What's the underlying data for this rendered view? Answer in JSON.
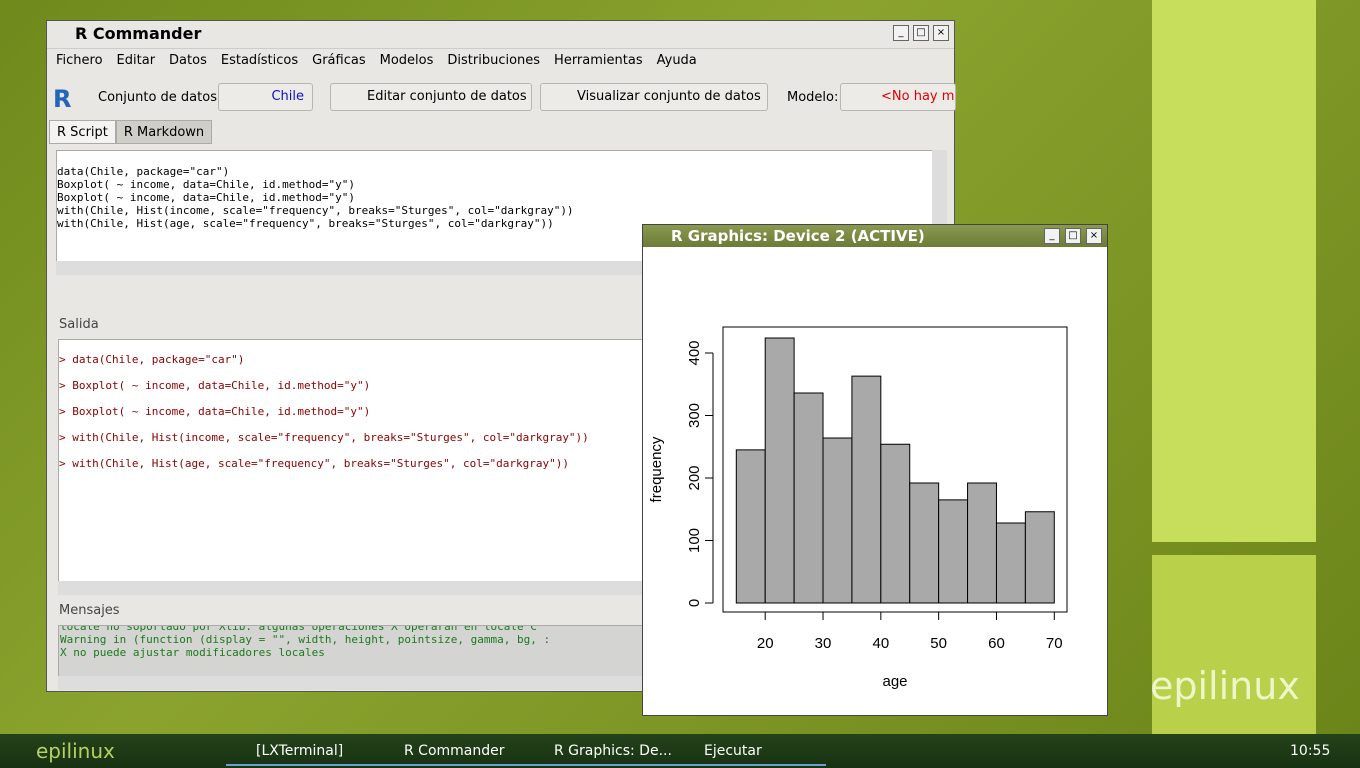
{
  "rcommander": {
    "title": "R Commander",
    "menu": [
      "Fichero",
      "Editar",
      "Datos",
      "Estadísticos",
      "Gráficas",
      "Modelos",
      "Distribuciones",
      "Herramientas",
      "Ayuda"
    ],
    "toolbar": {
      "dataset_label": "Conjunto de datos:",
      "dataset": "Chile",
      "edit_button": "Editar conjunto de datos",
      "view_button": "Visualizar conjunto de datos",
      "model_label": "Modelo:",
      "model": "<No hay mo"
    },
    "tabs": [
      "R Script",
      "R Markdown"
    ],
    "script": [
      "data(Chile, package=\"car\")",
      "Boxplot( ~ income, data=Chile, id.method=\"y\")",
      "Boxplot( ~ income, data=Chile, id.method=\"y\")",
      "with(Chile, Hist(income, scale=\"frequency\", breaks=\"Sturges\", col=\"darkgray\"))",
      "with(Chile, Hist(age, scale=\"frequency\", breaks=\"Sturges\", col=\"darkgray\"))"
    ],
    "output_label": "Salida",
    "output": [
      "> data(Chile, package=\"car\")",
      "> Boxplot( ~ income, data=Chile, id.method=\"y\")",
      "> Boxplot( ~ income, data=Chile, id.method=\"y\")",
      "> with(Chile, Hist(income, scale=\"frequency\", breaks=\"Sturges\", col=\"darkgray\"))",
      "> with(Chile, Hist(age, scale=\"frequency\", breaks=\"Sturges\", col=\"darkgray\"))"
    ],
    "messages_label": "Mensajes",
    "messages": [
      "locale no soportado por Xlib: algunas operaciones X operarán en locale C",
      "Warning in (function (display = \"\", width, height, pointsize, gamma, bg, :",
      "X no puede ajustar modificadores locales"
    ]
  },
  "graphics": {
    "title": "R Graphics: Device 2 (ACTIVE)",
    "chart_data": {
      "type": "histogram",
      "xlabel": "age",
      "ylabel": "frequency",
      "color": "#a9a9a9",
      "bins": [
        15,
        20,
        25,
        30,
        35,
        40,
        45,
        50,
        55,
        60,
        65,
        70
      ],
      "values": [
        245,
        424,
        336,
        264,
        363,
        254,
        192,
        165,
        192,
        128,
        146
      ],
      "xlim": [
        12.7,
        72.2
      ],
      "ylim": [
        -14.4,
        441.6
      ],
      "xticks": [
        20,
        30,
        40,
        50,
        60,
        70
      ],
      "yticks": [
        0,
        100,
        200,
        300,
        400
      ]
    }
  },
  "taskbar": {
    "logo": "epilinux",
    "items": [
      "[LXTerminal]",
      "R Commander",
      "R Graphics: De...",
      "Ejecutar"
    ],
    "clock": "10:55"
  },
  "brand": "epilinux"
}
